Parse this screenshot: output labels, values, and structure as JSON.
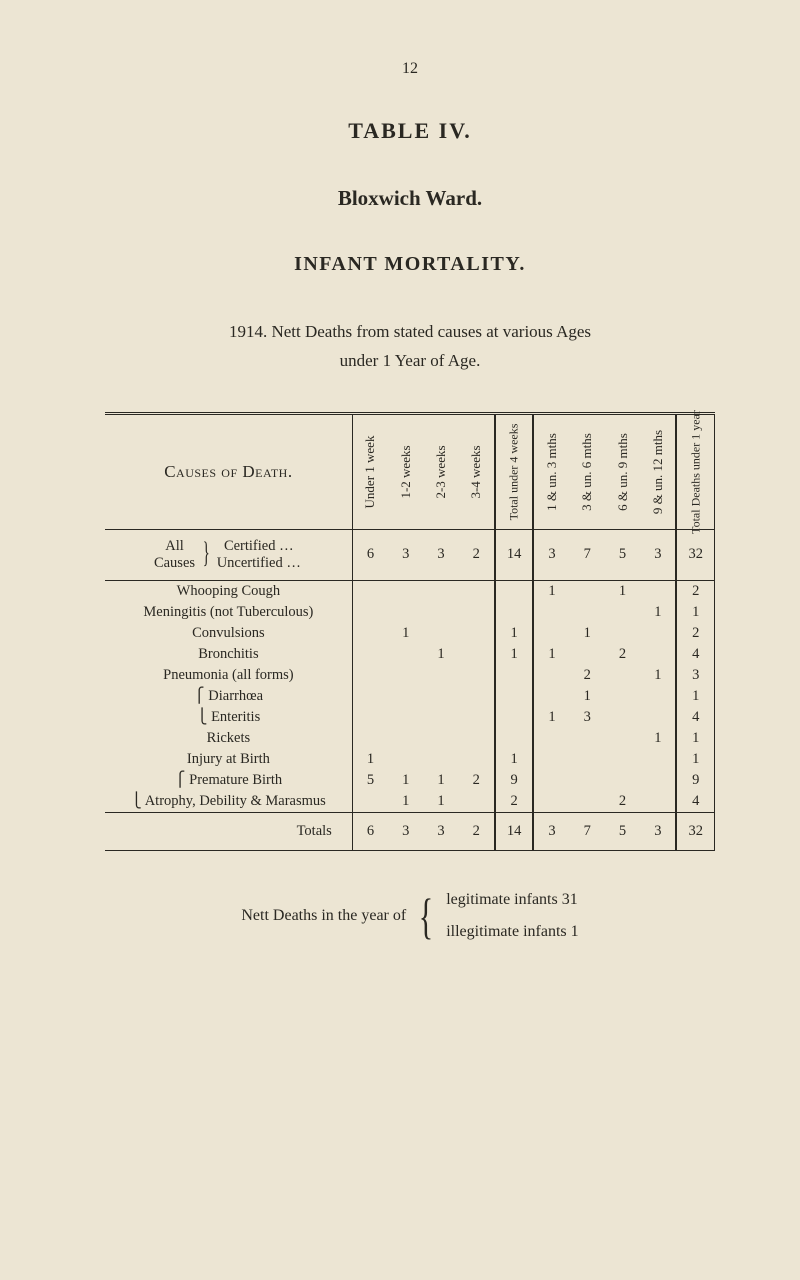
{
  "page_number": "12",
  "table_label": "TABLE IV.",
  "ward": "Bloxwich Ward.",
  "section": "INFANT MORTALITY.",
  "statement_line1": "1914.   Nett Deaths from stated causes at various Ages",
  "statement_line2": "under 1 Year of Age.",
  "header_causes": "Causes of Death.",
  "col_headers": [
    "Under 1 week",
    "1-2 weeks",
    "2-3 weeks",
    "3-4 weeks",
    "Total under 4 weeks",
    "1 & un. 3 mths",
    "3 & un. 6 mths",
    "6 & un. 9 mths",
    "9 & un. 12 mths",
    "Total Deaths under 1 year"
  ],
  "summary": {
    "label_all": "All",
    "label_causes": "Causes",
    "brace_cert": "Certified",
    "brace_uncert": "Uncertified",
    "dots": "…",
    "values": [
      "6",
      "3",
      "3",
      "2",
      "14",
      "3",
      "7",
      "5",
      "3",
      "32"
    ]
  },
  "rows": [
    {
      "cause": "Whooping Cough",
      "v": [
        "",
        "",
        "",
        "",
        "",
        "1",
        "",
        "1",
        "",
        "2"
      ]
    },
    {
      "cause": "Meningitis (not Tuberculous)",
      "v": [
        "",
        "",
        "",
        "",
        "",
        "",
        "",
        "",
        "1",
        "1"
      ]
    },
    {
      "cause": "Convulsions",
      "v": [
        "",
        "1",
        "",
        "",
        "1",
        "",
        "1",
        "",
        "",
        "2"
      ]
    },
    {
      "cause": "Bronchitis",
      "v": [
        "",
        "",
        "1",
        "",
        "1",
        "1",
        "",
        "2",
        "",
        "4"
      ]
    },
    {
      "cause": "Pneumonia (all forms)",
      "v": [
        "",
        "",
        "",
        "",
        "",
        "",
        "2",
        "",
        "1",
        "3"
      ]
    },
    {
      "cause": "Diarrhœa",
      "brace": "open",
      "v": [
        "",
        "",
        "",
        "",
        "",
        "",
        "1",
        "",
        "",
        "1"
      ]
    },
    {
      "cause": "Enteritis",
      "brace": "close",
      "v": [
        "",
        "",
        "",
        "",
        "",
        "1",
        "3",
        "",
        "",
        "4"
      ]
    },
    {
      "cause": "Rickets",
      "v": [
        "",
        "",
        "",
        "",
        "",
        "",
        "",
        "",
        "1",
        "1"
      ]
    },
    {
      "cause": "Injury at Birth",
      "v": [
        "1",
        "",
        "",
        "",
        "1",
        "",
        "",
        "",
        "",
        "1"
      ]
    },
    {
      "cause": "Premature Birth",
      "brace": "open",
      "v": [
        "5",
        "1",
        "1",
        "2",
        "9",
        "",
        "",
        "",
        "",
        "9"
      ]
    },
    {
      "cause": "Atrophy, Debility & Marasmus",
      "brace": "close",
      "v": [
        "",
        "1",
        "1",
        "",
        "2",
        "",
        "",
        "2",
        "",
        "4"
      ]
    }
  ],
  "totals": {
    "label": "Totals",
    "values": [
      "6",
      "3",
      "3",
      "2",
      "14",
      "3",
      "7",
      "5",
      "3",
      "32"
    ]
  },
  "nett": {
    "lead": "Nett Deaths in the year of",
    "line1": "legitimate infants   31",
    "line2": "illegitimate infants   1"
  }
}
